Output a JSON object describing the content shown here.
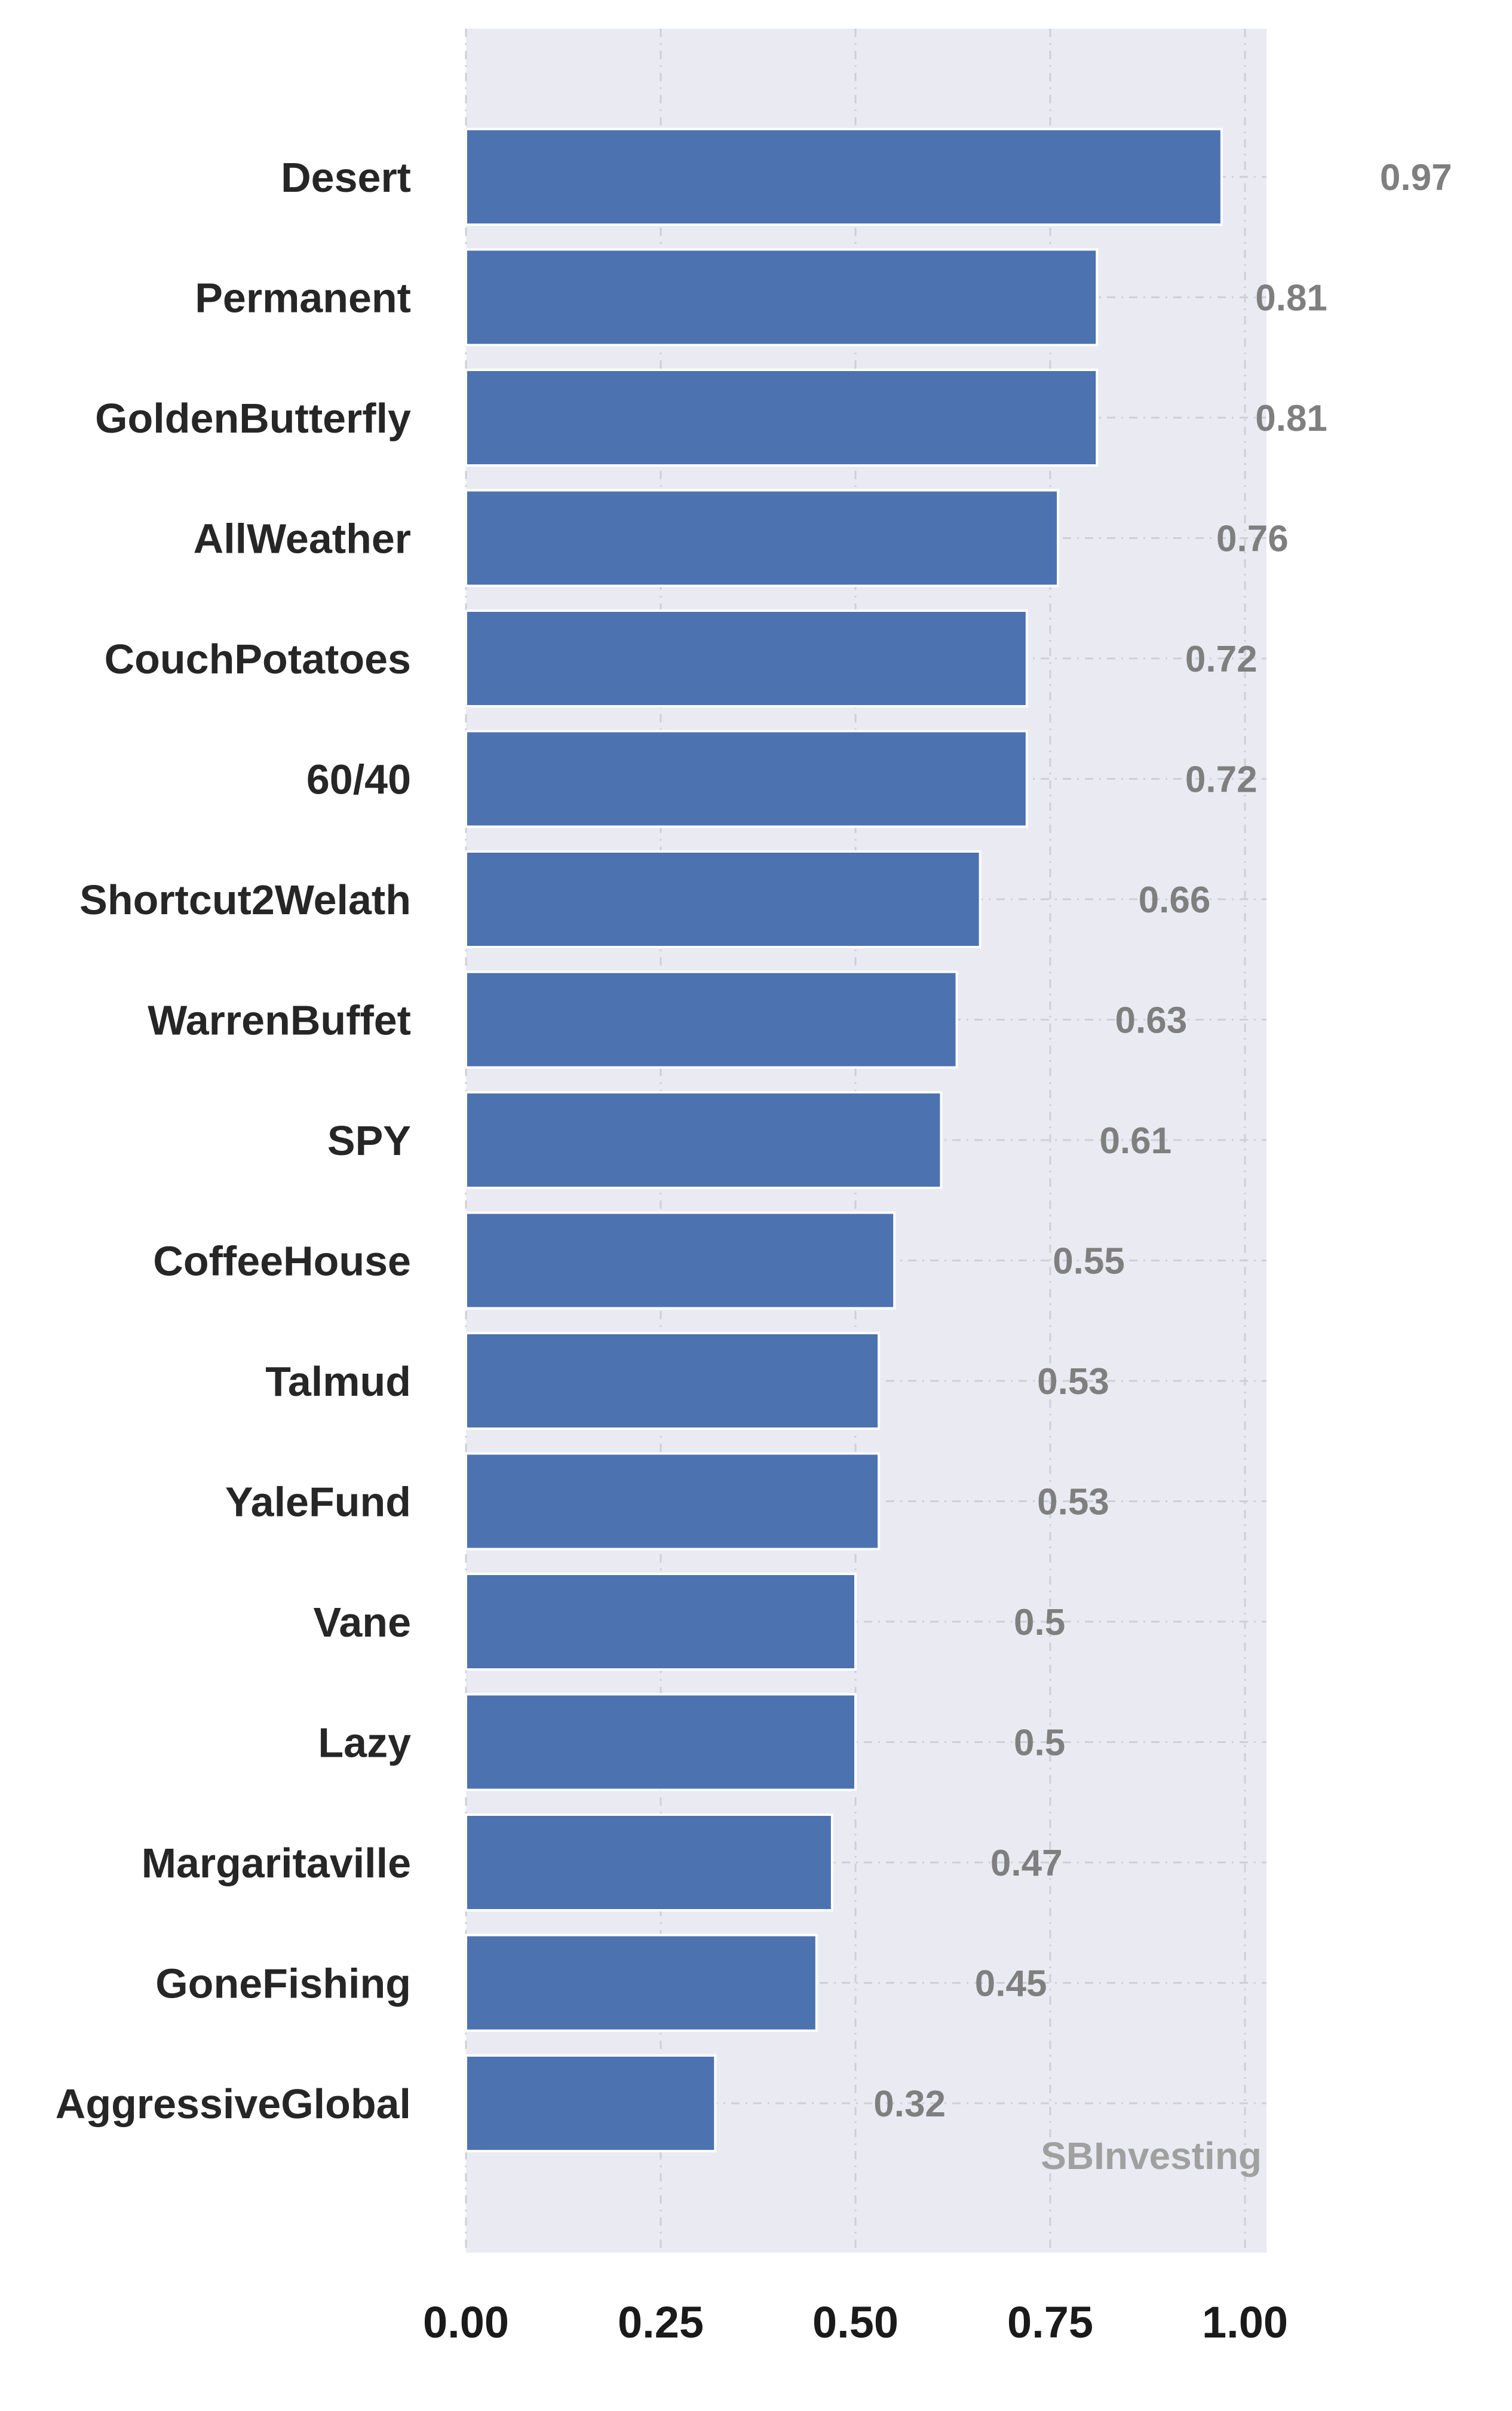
{
  "chart_data": {
    "type": "bar",
    "orientation": "horizontal",
    "categories": [
      "Desert",
      "Permanent",
      "GoldenButterfly",
      "AllWeather",
      "CouchPotatoes",
      "60/40",
      "Shortcut2Welath",
      "WarrenBuffet",
      "SPY",
      "CoffeeHouse",
      "Talmud",
      "YaleFund",
      "Vane",
      "Lazy",
      "Margaritaville",
      "GoneFishing",
      "AggressiveGlobal"
    ],
    "values": [
      0.97,
      0.81,
      0.81,
      0.76,
      0.72,
      0.72,
      0.66,
      0.63,
      0.61,
      0.55,
      0.53,
      0.53,
      0.5,
      0.5,
      0.47,
      0.45,
      0.32
    ],
    "value_labels": [
      "0.97",
      "0.81",
      "0.81",
      "0.76",
      "0.72",
      "0.72",
      "0.66",
      "0.63",
      "0.61",
      "0.55",
      "0.53",
      "0.53",
      "0.5",
      "0.5",
      "0.47",
      "0.45",
      "0.32"
    ],
    "title": "",
    "xlabel": "",
    "ylabel": "",
    "xlim": [
      0,
      1.02
    ],
    "xticks": [
      0,
      0.25,
      0.5,
      0.75,
      1.0
    ],
    "xtick_labels": [
      "0.00",
      "0.25",
      "0.50",
      "0.75",
      "1.00"
    ],
    "grid": true,
    "legend": "none",
    "bar_color": "#4c72b0",
    "plot_background": "#eaeaf2",
    "value_label_color": "#7f7f7f",
    "watermark": "SBInvesting"
  }
}
